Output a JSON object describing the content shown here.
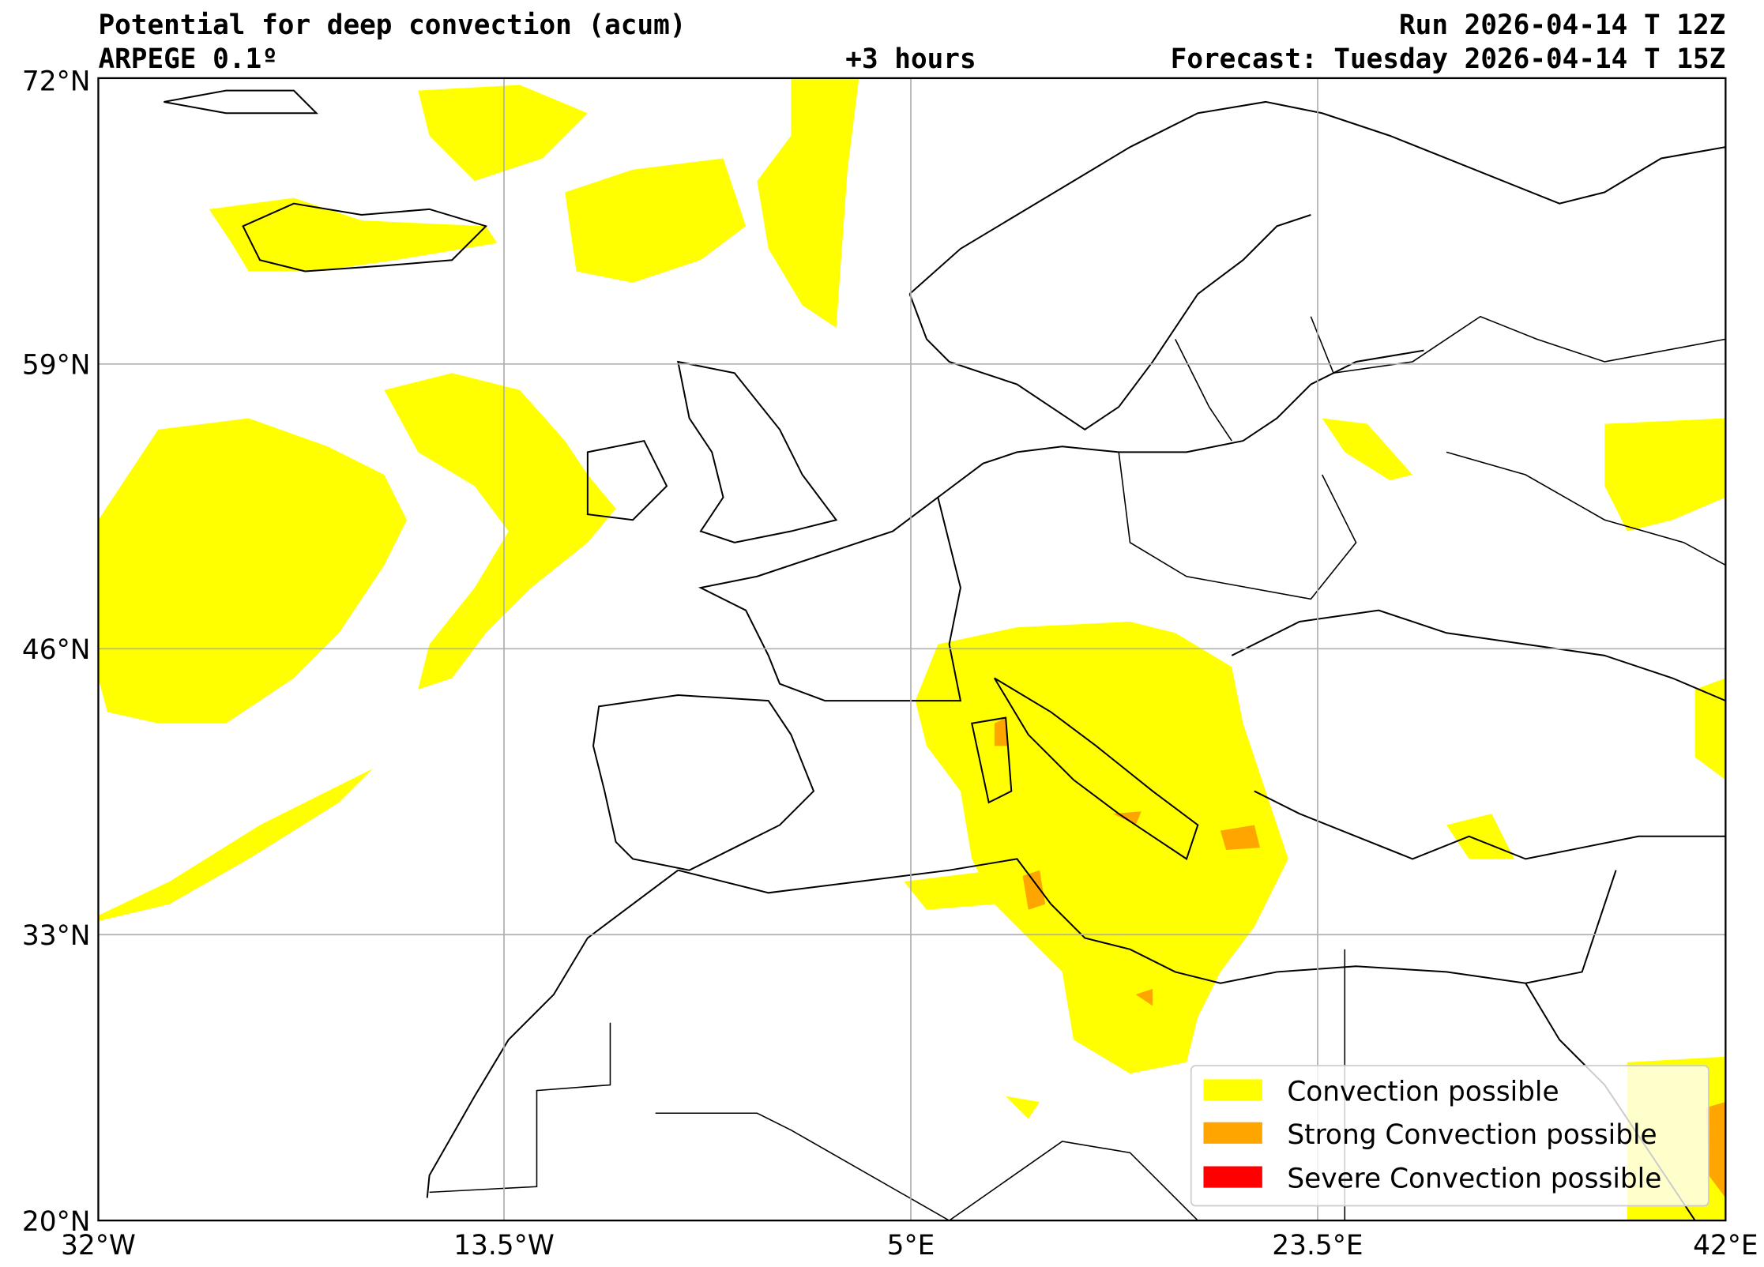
{
  "header": {
    "title": "Potential for deep convection (acum)",
    "model": "ARPEGE 0.1º",
    "lead_time": "+3 hours",
    "run": "Run 2026-04-14 T 12Z",
    "forecast": "Forecast: Tuesday 2026-04-14 T 15Z"
  },
  "axes": {
    "lon_ticks": [
      "32°W",
      "13.5°W",
      "5°E",
      "23.5°E",
      "42°E"
    ],
    "lat_ticks": [
      "72°N",
      "59°N",
      "46°N",
      "33°N",
      "20°N"
    ]
  },
  "legend": {
    "items": [
      {
        "label": "Convection possible",
        "color": "#ffff00"
      },
      {
        "label": "Strong Convection possible",
        "color": "#ffa500"
      },
      {
        "label": "Severe Convection possible",
        "color": "#ff0000"
      }
    ]
  },
  "chart_data": {
    "type": "map",
    "projection": "plate-carree",
    "lon_range": [
      -32,
      42
    ],
    "lat_range": [
      20,
      72
    ],
    "grid": true,
    "legend_position": "bottom-right"
  }
}
